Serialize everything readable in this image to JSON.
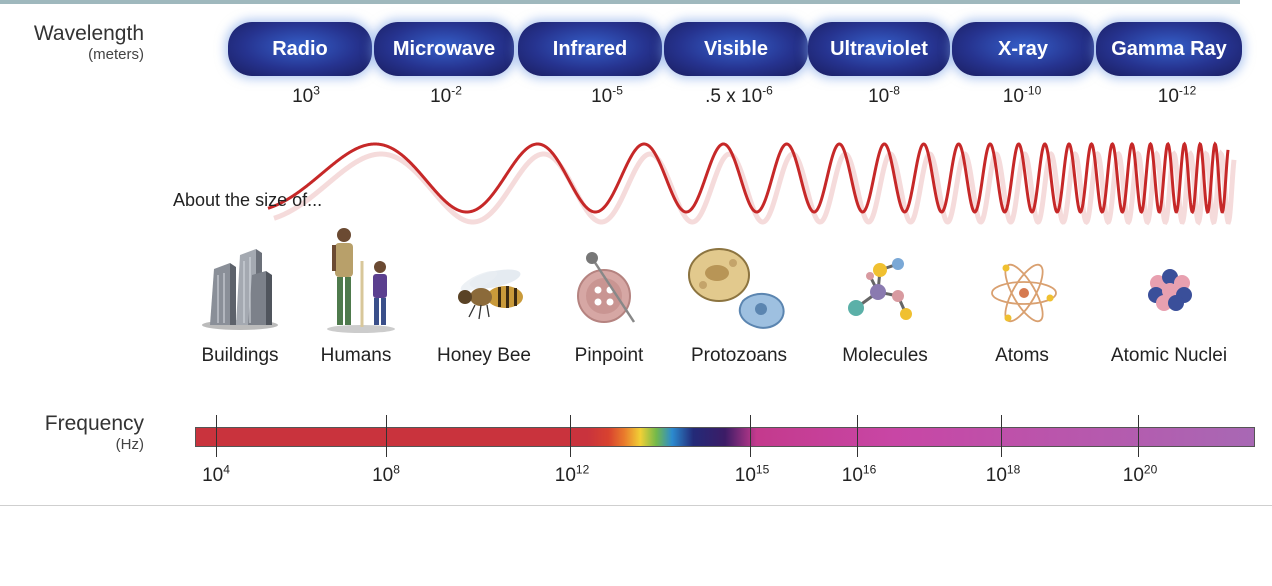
{
  "wavelength": {
    "label": "Wavelength",
    "unit": "(meters)"
  },
  "bands": [
    "Radio",
    "Microwave",
    "Infrared",
    "Visible",
    "Ultraviolet",
    "X-ray",
    "Gamma Ray"
  ],
  "wavelength_values": [
    {
      "base": "10",
      "exp": "3"
    },
    {
      "base": "10",
      "exp": "-2"
    },
    {
      "base": "10",
      "exp": "-5"
    },
    {
      "base": ".5 x 10",
      "exp": "-6"
    },
    {
      "base": "10",
      "exp": "-8"
    },
    {
      "base": "10",
      "exp": "-10"
    },
    {
      "base": "10",
      "exp": "-12"
    }
  ],
  "about_text": "About the size of...",
  "objects": [
    {
      "label": "Buildings",
      "icon": "buildings-icon"
    },
    {
      "label": "Humans",
      "icon": "humans-icon"
    },
    {
      "label": "Honey Bee",
      "icon": "honey-bee-icon"
    },
    {
      "label": "Pinpoint",
      "icon": "pinpoint-icon"
    },
    {
      "label": "Protozoans",
      "icon": "protozoans-icon"
    },
    {
      "label": "Molecules",
      "icon": "molecules-icon"
    },
    {
      "label": "Atoms",
      "icon": "atoms-icon"
    },
    {
      "label": "Atomic Nuclei",
      "icon": "atomic-nuclei-icon"
    }
  ],
  "frequency": {
    "label": "Frequency",
    "unit": "(Hz)"
  },
  "frequency_ticks": [
    {
      "base": "10",
      "exp": "4"
    },
    {
      "base": "10",
      "exp": "8"
    },
    {
      "base": "10",
      "exp": "12"
    },
    {
      "base": "10",
      "exp": "15"
    },
    {
      "base": "10",
      "exp": "16"
    },
    {
      "base": "10",
      "exp": "18"
    },
    {
      "base": "10",
      "exp": "20"
    }
  ],
  "colors": {
    "band_fill": "#26338f",
    "wave": "#c62828",
    "spectrum_red": "#c9333d",
    "spectrum_violet": "#a868b4"
  }
}
